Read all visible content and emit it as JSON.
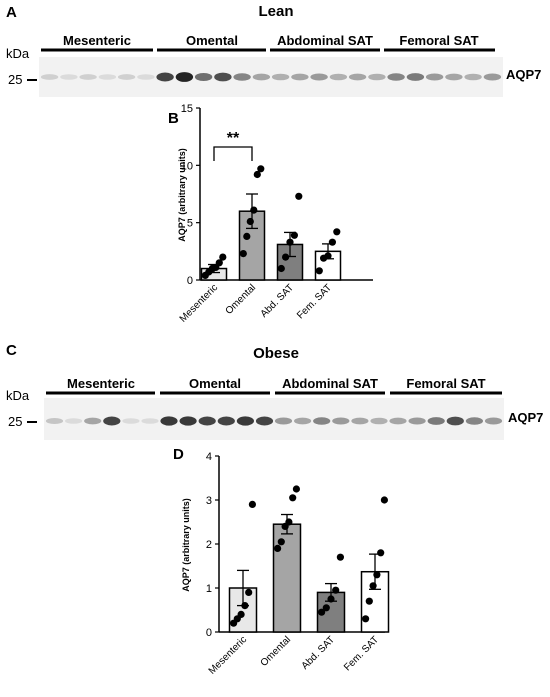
{
  "panels": {
    "A": {
      "letter": "A",
      "title": "Lean"
    },
    "B": {
      "letter": "B"
    },
    "C": {
      "letter": "C",
      "title": "Obese"
    },
    "D": {
      "letter": "D"
    }
  },
  "blot_labels": {
    "kda": "kDa",
    "marker": "25",
    "protein": "AQP7"
  },
  "blot_groups": [
    "Mesenteric",
    "Omental",
    "Abdominal SAT",
    "Femoral SAT"
  ],
  "blot_lean_intensity": [
    0.15,
    0.1,
    0.15,
    0.1,
    0.15,
    0.1,
    0.8,
    0.95,
    0.6,
    0.75,
    0.5,
    0.35,
    0.3,
    0.35,
    0.4,
    0.3,
    0.35,
    0.3,
    0.5,
    0.55,
    0.4,
    0.35,
    0.3,
    0.4
  ],
  "blot_obese_intensity": [
    0.2,
    0.1,
    0.35,
    0.8,
    0.1,
    0.1,
    0.85,
    0.85,
    0.8,
    0.8,
    0.85,
    0.8,
    0.4,
    0.35,
    0.5,
    0.4,
    0.35,
    0.3,
    0.35,
    0.4,
    0.55,
    0.75,
    0.5,
    0.4
  ],
  "chart_data": [
    {
      "type": "bar",
      "panel": "B",
      "categories": [
        "Mesenteric",
        "Omental",
        "Abd. SAT",
        "Fem. SAT"
      ],
      "values": [
        1.0,
        6.0,
        3.1,
        2.5
      ],
      "errors": [
        0.35,
        1.5,
        1.05,
        0.65
      ],
      "points": [
        [
          0.4,
          0.7,
          1.0,
          1.1,
          1.5,
          2.0
        ],
        [
          2.3,
          3.8,
          5.1,
          6.1,
          9.2,
          9.7
        ],
        [
          1.0,
          2.0,
          3.3,
          3.9,
          7.3
        ],
        [
          0.8,
          1.9,
          2.1,
          3.3,
          4.2
        ]
      ],
      "bar_colors": [
        "#e8e8e8",
        "#a5a5a5",
        "#7f7f7f",
        "#ffffff"
      ],
      "ylabel": "AQP7 (arbitrary units)",
      "ylim": [
        0,
        15
      ],
      "yticks": [
        "0",
        "5",
        "10",
        "15"
      ],
      "significance": {
        "label": "**",
        "from": 0,
        "to": 1
      }
    },
    {
      "type": "bar",
      "panel": "D",
      "categories": [
        "Mesenteric",
        "Omental",
        "Abd. SAT",
        "Fem. SAT"
      ],
      "values": [
        1.0,
        2.45,
        0.9,
        1.37
      ],
      "errors": [
        0.4,
        0.22,
        0.2,
        0.4
      ],
      "points": [
        [
          0.2,
          0.3,
          0.4,
          0.6,
          0.9,
          2.9
        ],
        [
          1.9,
          2.05,
          2.4,
          2.5,
          3.05,
          3.25
        ],
        [
          0.45,
          0.55,
          0.75,
          0.95,
          1.7
        ],
        [
          0.3,
          0.7,
          1.05,
          1.3,
          1.8,
          3.0
        ]
      ],
      "bar_colors": [
        "#e8e8e8",
        "#a5a5a5",
        "#7f7f7f",
        "#ffffff"
      ],
      "ylabel": "AQP7 (arbitrary units)",
      "ylim": [
        0,
        4
      ],
      "yticks": [
        "0",
        "1",
        "2",
        "3",
        "4"
      ]
    }
  ]
}
